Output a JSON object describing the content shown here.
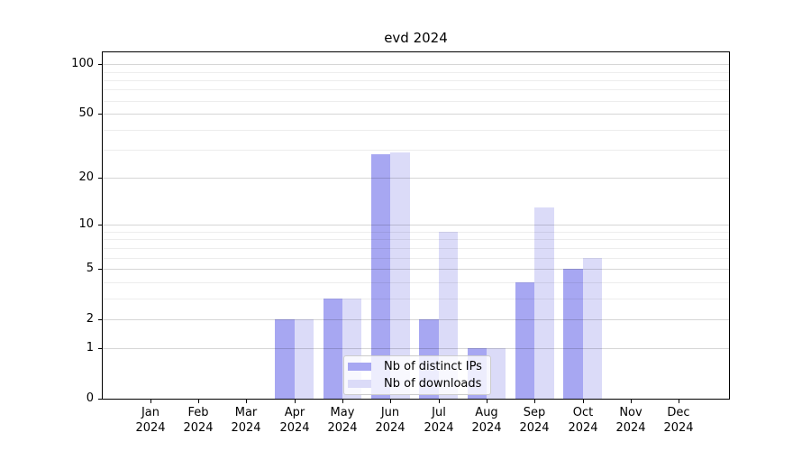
{
  "chart_data": {
    "type": "bar",
    "title": "evd 2024",
    "categories": [
      "Jan",
      "Feb",
      "Mar",
      "Apr",
      "May",
      "Jun",
      "Jul",
      "Aug",
      "Sep",
      "Oct",
      "Nov",
      "Dec"
    ],
    "x_year_label": "2024",
    "series": [
      {
        "name": "Nb of distinct IPs",
        "color": "#a7a7f2",
        "values": [
          0,
          0,
          0,
          2,
          3,
          28,
          2,
          1,
          4,
          5,
          0,
          0
        ]
      },
      {
        "name": "Nb of downloads",
        "color": "#dbdbf8",
        "values": [
          0,
          0,
          0,
          2,
          3,
          29,
          9,
          1,
          13,
          6,
          0,
          0
        ]
      }
    ],
    "y_scale": "log(1+x)",
    "ylim": [
      0,
      118
    ],
    "y_ticks": [
      0,
      1,
      2,
      5,
      10,
      20,
      50,
      100
    ],
    "y_minor_gridlines": [
      3,
      4,
      6,
      7,
      8,
      9,
      30,
      40,
      60,
      70,
      80,
      90
    ],
    "grid": true,
    "legend_position": "lower center",
    "xlabel": "",
    "ylabel": ""
  },
  "colors": {
    "background": "#ffffff",
    "axis": "#000000",
    "grid_major": "rgba(0,0,0,0.16)",
    "grid_minor": "rgba(0,0,0,0.07)",
    "legend_background": "rgba(255,255,255,0.8)",
    "legend_border": "#cccccc"
  }
}
